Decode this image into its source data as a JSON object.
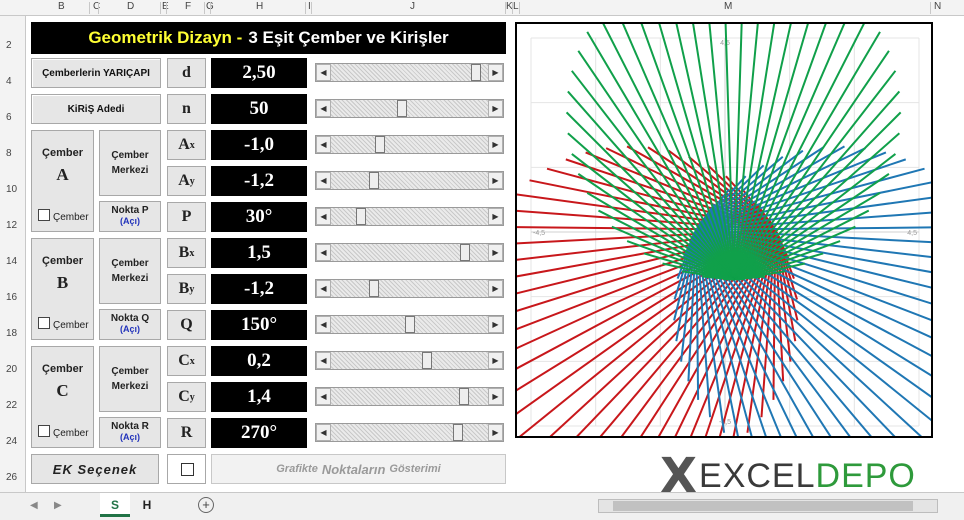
{
  "title": {
    "part1": "Geometrik Dizayn -",
    "part2": "3 Eşit Çember ve Kirişler"
  },
  "column_headers": [
    "B",
    "C",
    "D",
    "E",
    "F",
    "G",
    "H",
    "I",
    "J",
    "K",
    "L",
    "M",
    "N"
  ],
  "row_headers": [
    "2",
    "4",
    "6",
    "8",
    "10",
    "12",
    "14",
    "16",
    "18",
    "20",
    "22",
    "24",
    "26"
  ],
  "buttons": {
    "radius": "Çemberlerin YARIÇAPI",
    "chords": "KiRiŞ  Adedi"
  },
  "groups": [
    {
      "title": "Çember",
      "letter": "A",
      "checkbox": "Çember",
      "center": "Çember Merkezi",
      "point": "Nokta P",
      "angle": "(Açı)"
    },
    {
      "title": "Çember",
      "letter": "B",
      "checkbox": "Çember",
      "center": "Çember Merkezi",
      "point": "Nokta Q",
      "angle": "(Açı)"
    },
    {
      "title": "Çember",
      "letter": "C",
      "checkbox": "Çember",
      "center": "Çember Merkezi",
      "point": "Nokta R",
      "angle": "(Açı)"
    }
  ],
  "params": [
    {
      "label": "d",
      "sub": "",
      "value": "2,50",
      "slider": 0.95
    },
    {
      "label": "n",
      "sub": "",
      "value": "50",
      "slider": 0.45
    },
    {
      "label": "A",
      "sub": "x",
      "value": "-1,0",
      "slider": 0.3
    },
    {
      "label": "A",
      "sub": "y",
      "value": "-1,2",
      "slider": 0.26
    },
    {
      "label": "P",
      "sub": "",
      "value": "30°",
      "slider": 0.17
    },
    {
      "label": "B",
      "sub": "x",
      "value": "1,5",
      "slider": 0.88
    },
    {
      "label": "B",
      "sub": "y",
      "value": "-1,2",
      "slider": 0.26
    },
    {
      "label": "Q",
      "sub": "",
      "value": "150°",
      "slider": 0.5
    },
    {
      "label": "C",
      "sub": "x",
      "value": "0,2",
      "slider": 0.62
    },
    {
      "label": "C",
      "sub": "y",
      "value": "1,4",
      "slider": 0.87
    },
    {
      "label": "R",
      "sub": "",
      "value": "270°",
      "slider": 0.83
    }
  ],
  "extra": {
    "button": "EK Seçenek",
    "graf_pre": "Grafikte",
    "graf_big": "Noktaların",
    "graf_post": "Gösterimi"
  },
  "chart_data": {
    "type": "line",
    "title": "",
    "xlim": [
      -4.5,
      4.5
    ],
    "ylim": [
      -4.5,
      4.5
    ],
    "x_ticks": [
      "-4,5",
      "4,5"
    ],
    "y_ticks": [
      "4,5",
      "-4,5"
    ],
    "radius": 2.5,
    "chords": 50,
    "series": [
      {
        "center": [
          -1.0,
          -1.2
        ],
        "start_angle": 30,
        "color": "#c8171b"
      },
      {
        "center": [
          1.5,
          -1.2
        ],
        "start_angle": 150,
        "color": "#1f77b4"
      },
      {
        "center": [
          0.2,
          1.4
        ],
        "start_angle": 270,
        "color": "#10a04a"
      }
    ],
    "grid": true
  },
  "logo": {
    "prefix": "X",
    "word1": "EXCEL",
    "word2": "DEPO"
  },
  "sheets": {
    "tab1": "S",
    "tab2": "H",
    "add": "+"
  },
  "colors": {
    "title_accent": "#ffff33",
    "active_tab": "#217346",
    "logo_green": "#2e9a3b"
  }
}
